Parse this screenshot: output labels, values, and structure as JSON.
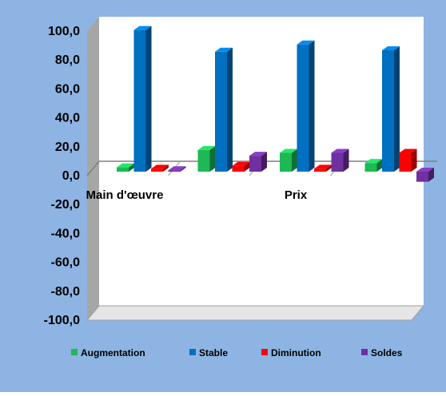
{
  "chart_data": {
    "type": "bar",
    "style": "3d-clustered-column",
    "categories": [
      "Main d'œuvre",
      "",
      "Prix",
      ""
    ],
    "series": [
      {
        "name": "Augmentation",
        "color": "#1DB954",
        "values": [
          3.0,
          15.0,
          13.0,
          6.0
        ]
      },
      {
        "name": "Stable",
        "color": "#0070C0",
        "values": [
          98.0,
          83.0,
          88.0,
          84.0
        ]
      },
      {
        "name": "Diminution",
        "color": "#FF0000",
        "values": [
          2.0,
          4.0,
          2.0,
          13.0
        ]
      },
      {
        "name": "Soldes",
        "color": "#7030A0",
        "values": [
          1.0,
          11.0,
          13.0,
          -7.0
        ]
      }
    ],
    "ylim": [
      -100,
      100
    ],
    "yticks": [
      "100,0",
      "80,0",
      "60,0",
      "40,0",
      "20,0",
      "0,0",
      "-20,0",
      "-40,0",
      "-60,0",
      "-80,0",
      "-100,0"
    ],
    "ytick_values": [
      100,
      80,
      60,
      40,
      20,
      0,
      -20,
      -40,
      -60,
      -80,
      -100
    ],
    "legend_position": "bottom",
    "grid": false,
    "background_color": "#8DB4E2",
    "plot_wall_color": "#FFFFFF",
    "side_wall_color": "#A6A6A6"
  }
}
